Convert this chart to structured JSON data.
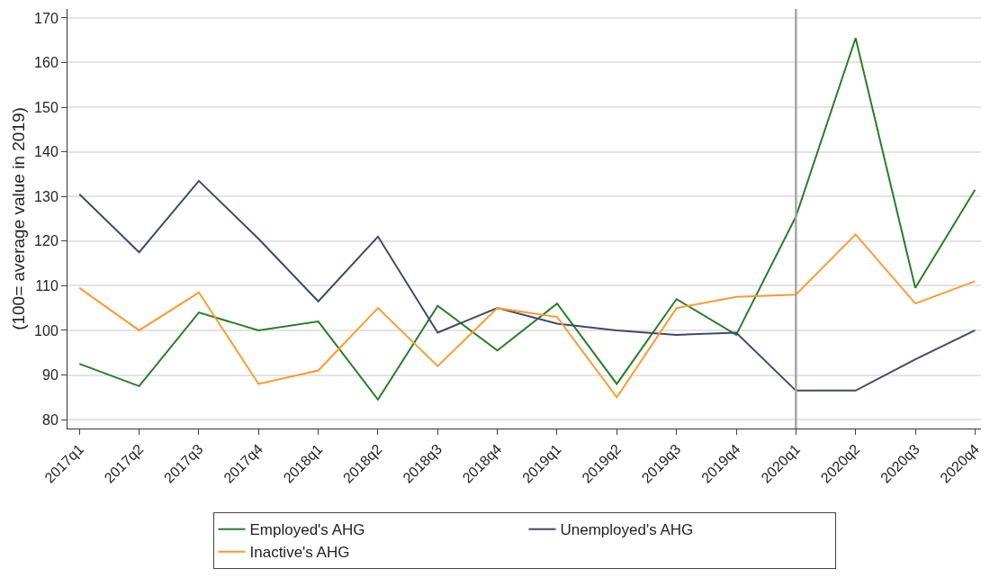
{
  "chart_data": {
    "type": "line",
    "ylabel": "(100= average value in 2019)",
    "categories": [
      "2017q1",
      "2017q2",
      "2017q3",
      "2017q4",
      "2018q1",
      "2018q2",
      "2018q3",
      "2018q4",
      "2019q1",
      "2019q2",
      "2019q3",
      "2019q4",
      "2020q1",
      "2020q2",
      "2020q3",
      "2020q4"
    ],
    "series": [
      {
        "name": "Employed's AHG",
        "color": "#2a7d2a",
        "values": [
          92.5,
          87.5,
          104,
          100,
          102,
          84.5,
          105.5,
          95.5,
          106,
          88,
          107,
          99,
          125.5,
          165.5,
          109.5,
          131.5
        ]
      },
      {
        "name": "Unemployed's AHG",
        "color": "#3f4a6b",
        "values": [
          130.5,
          117.5,
          133.5,
          120.5,
          106.5,
          121,
          99.5,
          105,
          101.5,
          100,
          99,
          99.5,
          86.5,
          86.5,
          93.5,
          100
        ]
      },
      {
        "name": "Inactive's AHG",
        "color": "#ff9a2e",
        "values": [
          109.5,
          100,
          108.5,
          88,
          91,
          105,
          92,
          105,
          103,
          85,
          105,
          107.5,
          108,
          121.5,
          106,
          111
        ]
      }
    ],
    "ylim": [
      78,
      172
    ],
    "yticks": [
      80,
      90,
      100,
      110,
      120,
      130,
      140,
      150,
      160,
      170
    ],
    "grid": "y",
    "legend": "bottom",
    "marker": "none",
    "line_style": "solid",
    "ref_lines": [
      {
        "axis": "x",
        "value": "2020q1",
        "color": "#a6a6a6"
      }
    ]
  }
}
